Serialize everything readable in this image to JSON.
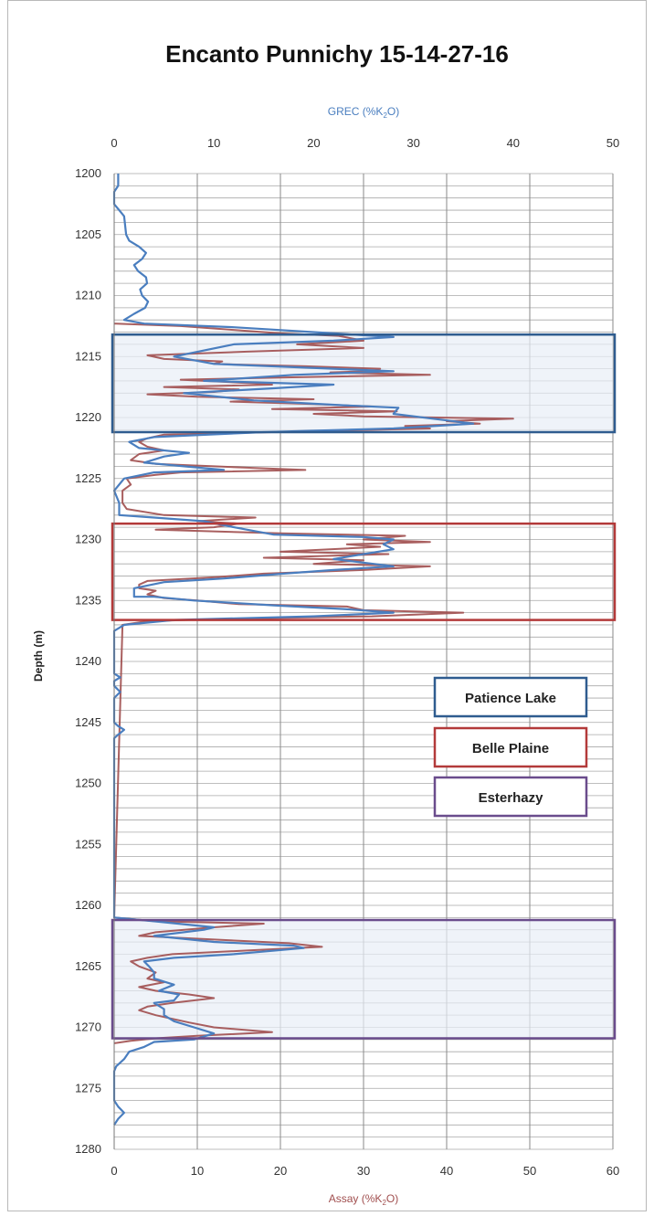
{
  "chart_data": {
    "type": "line",
    "title": "Encanto Punnichy 15-14-27-16",
    "ylabel": "Depth (m)",
    "ylim": [
      1200,
      1280
    ],
    "y_ticks": [
      1200,
      1205,
      1210,
      1215,
      1220,
      1225,
      1230,
      1235,
      1240,
      1245,
      1250,
      1255,
      1260,
      1265,
      1270,
      1275,
      1280
    ],
    "y_inverted": true,
    "top_axis": {
      "label_prefix": "GREC (%K",
      "label_sub": "2",
      "label_suffix": "O)",
      "range": [
        0,
        50
      ],
      "ticks": [
        0,
        10,
        20,
        30,
        40,
        50
      ]
    },
    "bottom_axis": {
      "label_prefix": "Assay (%K",
      "label_sub": "2",
      "label_suffix": "O)",
      "range": [
        0,
        60
      ],
      "ticks": [
        0,
        10,
        20,
        30,
        40,
        50,
        60
      ]
    },
    "grid": true,
    "colors": {
      "grec": "#4a7ebf",
      "assay": "#a04e4e",
      "patience_lake": "#2f5c8f",
      "belle_plaine": "#b33a3a",
      "esterhazy": "#6a4c8c",
      "zone_fill": "#e8eef7"
    },
    "zones": [
      {
        "name": "Patience Lake",
        "top": 1213.2,
        "bottom": 1221.2,
        "key": "patience_lake",
        "shaded": true
      },
      {
        "name": "Belle Plaine",
        "top": 1228.7,
        "bottom": 1236.6,
        "key": "belle_plaine",
        "shaded": false
      },
      {
        "name": "Esterhazy",
        "top": 1261.2,
        "bottom": 1270.9,
        "key": "esterhazy",
        "shaded": true
      }
    ],
    "series": [
      {
        "key": "grec",
        "axis": "top",
        "points": [
          [
            0.4,
            1200
          ],
          [
            0.4,
            1201
          ],
          [
            0,
            1201.5
          ],
          [
            0,
            1202.5
          ],
          [
            0.5,
            1203
          ],
          [
            1,
            1203.5
          ],
          [
            1.2,
            1205
          ],
          [
            1.5,
            1205.5
          ],
          [
            2.5,
            1206
          ],
          [
            3.2,
            1206.5
          ],
          [
            2.8,
            1207
          ],
          [
            2,
            1207.5
          ],
          [
            2.4,
            1208
          ],
          [
            3.2,
            1208.5
          ],
          [
            3.3,
            1209
          ],
          [
            2.6,
            1209.5
          ],
          [
            2.8,
            1210
          ],
          [
            3.4,
            1210.5
          ],
          [
            3.1,
            1211
          ],
          [
            2,
            1211.5
          ],
          [
            1,
            1212
          ],
          [
            3,
            1212.3
          ],
          [
            12,
            1212.6
          ],
          [
            28,
            1213.4
          ],
          [
            22,
            1213.7
          ],
          [
            12,
            1214
          ],
          [
            6,
            1215
          ],
          [
            10,
            1215.6
          ],
          [
            22,
            1216
          ],
          [
            28,
            1216.2
          ],
          [
            18,
            1216.5
          ],
          [
            9,
            1217
          ],
          [
            22,
            1217.3
          ],
          [
            16,
            1217.6
          ],
          [
            7,
            1218
          ],
          [
            14,
            1218.6
          ],
          [
            23,
            1219
          ],
          [
            28.5,
            1219.2
          ],
          [
            28,
            1219.7
          ],
          [
            33,
            1220.2
          ],
          [
            36,
            1220.5
          ],
          [
            28,
            1220.9
          ],
          [
            15,
            1221.2
          ],
          [
            4,
            1221.6
          ],
          [
            1.5,
            1222
          ],
          [
            2.5,
            1222.5
          ],
          [
            7.5,
            1222.9
          ],
          [
            5,
            1223.2
          ],
          [
            3,
            1223.7
          ],
          [
            7,
            1224
          ],
          [
            11,
            1224.3
          ],
          [
            4,
            1224.5
          ],
          [
            1,
            1225
          ],
          [
            0,
            1226
          ],
          [
            0.5,
            1227
          ],
          [
            0.5,
            1228
          ],
          [
            4,
            1228.2
          ],
          [
            9,
            1228.5
          ],
          [
            12,
            1229
          ],
          [
            16,
            1229.6
          ],
          [
            25,
            1229.8
          ],
          [
            28,
            1230
          ],
          [
            27,
            1230.4
          ],
          [
            28,
            1230.8
          ],
          [
            25,
            1231.2
          ],
          [
            22,
            1231.6
          ],
          [
            26,
            1232
          ],
          [
            28,
            1232.2
          ],
          [
            22,
            1232.5
          ],
          [
            17,
            1232.8
          ],
          [
            11,
            1233.2
          ],
          [
            5,
            1233.5
          ],
          [
            2,
            1234
          ],
          [
            2,
            1234.7
          ],
          [
            4,
            1234.7
          ],
          [
            8,
            1235
          ],
          [
            16,
            1235.4
          ],
          [
            23,
            1235.7
          ],
          [
            28,
            1236
          ],
          [
            20,
            1236.3
          ],
          [
            6,
            1236.6
          ],
          [
            1,
            1237
          ],
          [
            0,
            1237.5
          ],
          [
            0,
            1238.5
          ],
          [
            0,
            1241
          ],
          [
            0.6,
            1241.3
          ],
          [
            0,
            1241.6
          ],
          [
            0,
            1242
          ],
          [
            0.6,
            1242.5
          ],
          [
            0,
            1243
          ],
          [
            0,
            1245
          ],
          [
            0.4,
            1245.3
          ],
          [
            1,
            1245.6
          ],
          [
            0.4,
            1246
          ],
          [
            0,
            1246.3
          ],
          [
            0,
            1261
          ],
          [
            4,
            1261.3
          ],
          [
            10,
            1261.8
          ],
          [
            9,
            1262
          ],
          [
            4,
            1262.5
          ],
          [
            10,
            1263
          ],
          [
            18,
            1263.3
          ],
          [
            19,
            1263.5
          ],
          [
            12,
            1264
          ],
          [
            6,
            1264.3
          ],
          [
            3,
            1264.6
          ],
          [
            3.5,
            1265
          ],
          [
            4,
            1265.5
          ],
          [
            4,
            1266
          ],
          [
            6,
            1266.5
          ],
          [
            4.5,
            1267
          ],
          [
            6.5,
            1267.3
          ],
          [
            6,
            1267.8
          ],
          [
            4,
            1268
          ],
          [
            5,
            1268.5
          ],
          [
            5,
            1269
          ],
          [
            6,
            1269.5
          ],
          [
            8,
            1270
          ],
          [
            10,
            1270.5
          ],
          [
            8,
            1271
          ],
          [
            4,
            1271.2
          ],
          [
            3,
            1271.6
          ],
          [
            1.5,
            1272
          ],
          [
            1,
            1272.6
          ],
          [
            0.2,
            1273.2
          ],
          [
            0,
            1273.6
          ],
          [
            0,
            1276
          ],
          [
            0.4,
            1276.5
          ],
          [
            1,
            1277
          ],
          [
            0.4,
            1277.5
          ],
          [
            0,
            1278
          ]
        ]
      },
      {
        "key": "assay",
        "axis": "bottom",
        "points": [
          [
            0,
            1212.3
          ],
          [
            8,
            1212.5
          ],
          [
            14,
            1212.8
          ],
          [
            20,
            1213.1
          ],
          [
            27,
            1213.3
          ],
          [
            30,
            1213.7
          ],
          [
            22,
            1214
          ],
          [
            30,
            1214.3
          ],
          [
            16,
            1214.6
          ],
          [
            4,
            1214.9
          ],
          [
            6,
            1215.2
          ],
          [
            13,
            1215.4
          ],
          [
            12,
            1215.6
          ],
          [
            23,
            1215.8
          ],
          [
            32,
            1216
          ],
          [
            31,
            1216.2
          ],
          [
            26,
            1216.3
          ],
          [
            38,
            1216.5
          ],
          [
            22,
            1216.7
          ],
          [
            8,
            1216.9
          ],
          [
            14,
            1217.1
          ],
          [
            19,
            1217.3
          ],
          [
            6,
            1217.5
          ],
          [
            15,
            1217.7
          ],
          [
            12,
            1217.9
          ],
          [
            4,
            1218.1
          ],
          [
            10,
            1218.3
          ],
          [
            24,
            1218.5
          ],
          [
            14,
            1218.7
          ],
          [
            24,
            1218.9
          ],
          [
            31,
            1219.1
          ],
          [
            19,
            1219.3
          ],
          [
            34,
            1219.5
          ],
          [
            24,
            1219.7
          ],
          [
            30,
            1219.9
          ],
          [
            48,
            1220.1
          ],
          [
            40,
            1220.3
          ],
          [
            44,
            1220.5
          ],
          [
            35,
            1220.7
          ],
          [
            38,
            1220.9
          ],
          [
            19,
            1221.2
          ],
          [
            6,
            1221.4
          ],
          [
            4,
            1221.7
          ],
          [
            3,
            1222
          ],
          [
            4,
            1222.4
          ],
          [
            6,
            1222.7
          ],
          [
            3,
            1223
          ],
          [
            2,
            1223.5
          ],
          [
            5,
            1223.8
          ],
          [
            12,
            1224
          ],
          [
            23,
            1224.3
          ],
          [
            8,
            1224.5
          ],
          [
            5,
            1224.7
          ],
          [
            1.5,
            1225
          ],
          [
            2,
            1225.5
          ],
          [
            1,
            1226
          ],
          [
            1,
            1227
          ],
          [
            1.5,
            1227.5
          ],
          [
            6,
            1228
          ],
          [
            17,
            1228.2
          ],
          [
            10,
            1228.5
          ],
          [
            15,
            1228.7
          ],
          [
            12,
            1229
          ],
          [
            5,
            1229.2
          ],
          [
            20,
            1229.5
          ],
          [
            35,
            1229.7
          ],
          [
            30,
            1230
          ],
          [
            38,
            1230.2
          ],
          [
            28,
            1230.4
          ],
          [
            32,
            1230.6
          ],
          [
            20,
            1231
          ],
          [
            33,
            1231.2
          ],
          [
            18,
            1231.5
          ],
          [
            30,
            1231.7
          ],
          [
            24,
            1232
          ],
          [
            38,
            1232.2
          ],
          [
            30,
            1232.5
          ],
          [
            18,
            1232.8
          ],
          [
            12,
            1233.1
          ],
          [
            4,
            1233.4
          ],
          [
            3,
            1233.7
          ],
          [
            3,
            1234
          ],
          [
            5,
            1234.2
          ],
          [
            4,
            1234.5
          ],
          [
            6,
            1234.8
          ],
          [
            10,
            1235
          ],
          [
            15,
            1235.3
          ],
          [
            28,
            1235.5
          ],
          [
            30,
            1235.8
          ],
          [
            42,
            1236
          ],
          [
            31,
            1236.3
          ],
          [
            14,
            1236.5
          ],
          [
            4,
            1236.7
          ],
          [
            1,
            1237
          ],
          [
            0,
            1261
          ],
          [
            5,
            1261.3
          ],
          [
            18,
            1261.5
          ],
          [
            12,
            1261.8
          ],
          [
            5,
            1262.2
          ],
          [
            3,
            1262.5
          ],
          [
            12,
            1262.8
          ],
          [
            21,
            1263.1
          ],
          [
            25,
            1263.4
          ],
          [
            16,
            1263.7
          ],
          [
            7,
            1264
          ],
          [
            4,
            1264.3
          ],
          [
            2,
            1264.6
          ],
          [
            3,
            1265
          ],
          [
            5,
            1265.5
          ],
          [
            4,
            1266
          ],
          [
            6,
            1266.3
          ],
          [
            3,
            1266.7
          ],
          [
            5,
            1267
          ],
          [
            9,
            1267.3
          ],
          [
            12,
            1267.6
          ],
          [
            7,
            1268
          ],
          [
            4,
            1268.3
          ],
          [
            3,
            1268.6
          ],
          [
            5,
            1269
          ],
          [
            7,
            1269.3
          ],
          [
            9,
            1269.6
          ],
          [
            12,
            1270
          ],
          [
            19,
            1270.4
          ],
          [
            10,
            1270.7
          ],
          [
            5,
            1270.9
          ],
          [
            2,
            1271.1
          ],
          [
            0,
            1271.3
          ]
        ]
      }
    ],
    "legend": [
      {
        "label": "Patience Lake",
        "key": "patience_lake"
      },
      {
        "label": "Belle Plaine",
        "key": "belle_plaine"
      },
      {
        "label": "Esterhazy",
        "key": "esterhazy"
      }
    ]
  }
}
